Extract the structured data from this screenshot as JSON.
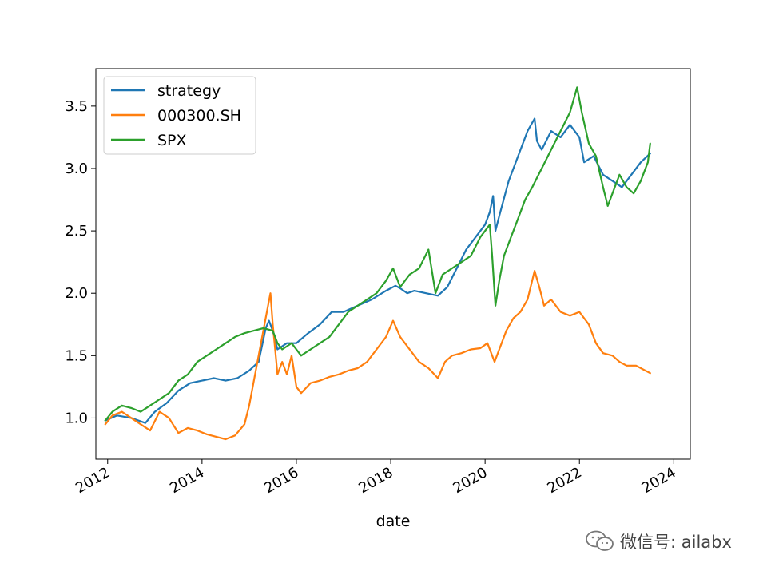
{
  "chart_data": {
    "type": "line",
    "title": "",
    "xlabel": "date",
    "ylabel": "",
    "xlim": [
      2011.75,
      2024.35
    ],
    "ylim": [
      0.67,
      3.8
    ],
    "x_ticks": [
      2012,
      2014,
      2016,
      2018,
      2020,
      2022,
      2024
    ],
    "x_tick_labels": [
      "2012",
      "2014",
      "2016",
      "2018",
      "2020",
      "2022",
      "2024"
    ],
    "y_ticks": [
      1.0,
      1.5,
      2.0,
      2.5,
      3.0,
      3.5
    ],
    "y_tick_labels": [
      "1.0",
      "1.5",
      "2.0",
      "2.5",
      "3.0",
      "3.5"
    ],
    "legend_position": "top-left",
    "series": [
      {
        "name": "strategy",
        "color": "#1f77b4",
        "x": [
          2011.95,
          2012.2,
          2012.5,
          2012.8,
          2013.0,
          2013.25,
          2013.5,
          2013.75,
          2014.0,
          2014.25,
          2014.5,
          2014.75,
          2015.0,
          2015.2,
          2015.35,
          2015.42,
          2015.5,
          2015.6,
          2015.8,
          2016.0,
          2016.25,
          2016.5,
          2016.75,
          2017.0,
          2017.3,
          2017.6,
          2017.9,
          2018.1,
          2018.2,
          2018.35,
          2018.5,
          2018.75,
          2019.0,
          2019.2,
          2019.4,
          2019.6,
          2019.8,
          2020.0,
          2020.1,
          2020.17,
          2020.22,
          2020.3,
          2020.5,
          2020.7,
          2020.9,
          2021.05,
          2021.1,
          2021.2,
          2021.4,
          2021.6,
          2021.8,
          2022.0,
          2022.1,
          2022.3,
          2022.5,
          2022.7,
          2022.9,
          2023.1,
          2023.3,
          2023.5
        ],
        "values": [
          0.98,
          1.02,
          1.0,
          0.96,
          1.05,
          1.12,
          1.22,
          1.28,
          1.3,
          1.32,
          1.3,
          1.32,
          1.38,
          1.45,
          1.72,
          1.78,
          1.7,
          1.55,
          1.6,
          1.6,
          1.68,
          1.75,
          1.85,
          1.85,
          1.9,
          1.95,
          2.02,
          2.06,
          2.04,
          2.0,
          2.02,
          2.0,
          1.98,
          2.05,
          2.2,
          2.35,
          2.45,
          2.55,
          2.65,
          2.78,
          2.5,
          2.62,
          2.9,
          3.1,
          3.3,
          3.4,
          3.22,
          3.15,
          3.3,
          3.25,
          3.35,
          3.25,
          3.05,
          3.1,
          2.95,
          2.9,
          2.85,
          2.95,
          3.05,
          3.12
        ]
      },
      {
        "name": "000300.SH",
        "color": "#ff7f0e",
        "x": [
          2011.95,
          2012.1,
          2012.3,
          2012.5,
          2012.7,
          2012.9,
          2013.1,
          2013.3,
          2013.5,
          2013.7,
          2013.9,
          2014.1,
          2014.3,
          2014.5,
          2014.7,
          2014.9,
          2015.0,
          2015.1,
          2015.2,
          2015.3,
          2015.4,
          2015.45,
          2015.5,
          2015.55,
          2015.6,
          2015.7,
          2015.8,
          2015.9,
          2016.0,
          2016.1,
          2016.3,
          2016.5,
          2016.7,
          2016.9,
          2017.1,
          2017.3,
          2017.5,
          2017.7,
          2017.9,
          2018.05,
          2018.2,
          2018.4,
          2018.6,
          2018.8,
          2019.0,
          2019.15,
          2019.3,
          2019.5,
          2019.7,
          2019.9,
          2020.05,
          2020.2,
          2020.3,
          2020.45,
          2020.6,
          2020.75,
          2020.9,
          2021.05,
          2021.15,
          2021.25,
          2021.4,
          2021.6,
          2021.8,
          2022.0,
          2022.2,
          2022.35,
          2022.5,
          2022.7,
          2022.85,
          2023.0,
          2023.2,
          2023.4,
          2023.5
        ],
        "values": [
          0.95,
          1.02,
          1.05,
          1.0,
          0.95,
          0.9,
          1.05,
          1.0,
          0.88,
          0.92,
          0.9,
          0.87,
          0.85,
          0.83,
          0.86,
          0.95,
          1.1,
          1.3,
          1.5,
          1.7,
          1.9,
          2.0,
          1.75,
          1.55,
          1.35,
          1.45,
          1.35,
          1.5,
          1.25,
          1.2,
          1.28,
          1.3,
          1.33,
          1.35,
          1.38,
          1.4,
          1.45,
          1.55,
          1.65,
          1.78,
          1.65,
          1.55,
          1.45,
          1.4,
          1.32,
          1.45,
          1.5,
          1.52,
          1.55,
          1.56,
          1.6,
          1.45,
          1.55,
          1.7,
          1.8,
          1.85,
          1.95,
          2.18,
          2.05,
          1.9,
          1.95,
          1.85,
          1.82,
          1.85,
          1.75,
          1.6,
          1.52,
          1.5,
          1.45,
          1.42,
          1.42,
          1.38,
          1.36
        ]
      },
      {
        "name": "SPX",
        "color": "#2ca02c",
        "x": [
          2011.95,
          2012.1,
          2012.3,
          2012.5,
          2012.7,
          2012.9,
          2013.1,
          2013.3,
          2013.5,
          2013.7,
          2013.9,
          2014.1,
          2014.3,
          2014.5,
          2014.7,
          2014.9,
          2015.1,
          2015.3,
          2015.5,
          2015.6,
          2015.7,
          2015.9,
          2016.1,
          2016.3,
          2016.5,
          2016.7,
          2016.9,
          2017.1,
          2017.3,
          2017.5,
          2017.7,
          2017.9,
          2018.05,
          2018.2,
          2018.4,
          2018.6,
          2018.8,
          2018.95,
          2019.1,
          2019.3,
          2019.5,
          2019.7,
          2019.9,
          2020.1,
          2020.15,
          2020.22,
          2020.3,
          2020.4,
          2020.55,
          2020.7,
          2020.85,
          2021.0,
          2021.2,
          2021.4,
          2021.6,
          2021.8,
          2021.95,
          2022.05,
          2022.2,
          2022.35,
          2022.5,
          2022.6,
          2022.75,
          2022.85,
          2023.0,
          2023.15,
          2023.3,
          2023.45,
          2023.5
        ],
        "values": [
          0.98,
          1.05,
          1.1,
          1.08,
          1.05,
          1.1,
          1.15,
          1.2,
          1.3,
          1.35,
          1.45,
          1.5,
          1.55,
          1.6,
          1.65,
          1.68,
          1.7,
          1.72,
          1.7,
          1.6,
          1.55,
          1.6,
          1.5,
          1.55,
          1.6,
          1.65,
          1.75,
          1.85,
          1.9,
          1.95,
          2.0,
          2.1,
          2.2,
          2.05,
          2.15,
          2.2,
          2.35,
          2.0,
          2.15,
          2.2,
          2.25,
          2.3,
          2.45,
          2.55,
          2.3,
          1.9,
          2.1,
          2.3,
          2.45,
          2.6,
          2.75,
          2.85,
          3.0,
          3.15,
          3.3,
          3.45,
          3.65,
          3.45,
          3.2,
          3.1,
          2.85,
          2.7,
          2.85,
          2.95,
          2.85,
          2.8,
          2.9,
          3.05,
          3.2
        ]
      }
    ]
  },
  "watermark": {
    "text": "微信号: ailabx",
    "icon": "wechat-icon"
  }
}
